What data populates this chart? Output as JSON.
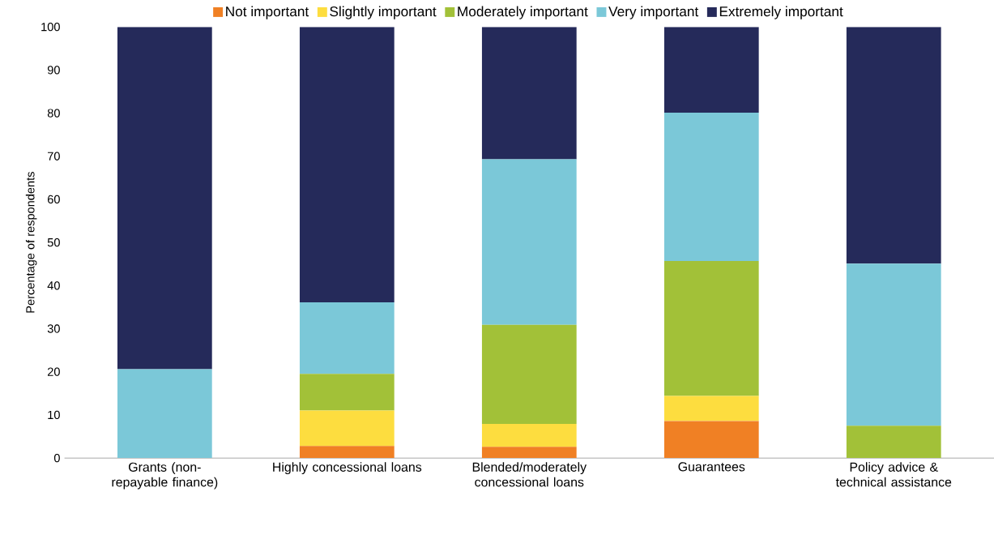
{
  "chart_data": {
    "type": "bar",
    "stacked": true,
    "ylabel": "Percentage of respondents",
    "categories": [
      "Grants (non-repayable finance)",
      "Highly concessional loans",
      "Blended/moderately concessional loans",
      "Guarantees",
      "Policy advice & technical assistance"
    ],
    "series": [
      {
        "name": "Not important",
        "color": "#f08024",
        "values": [
          0,
          2.8,
          2.6,
          8.6,
          0
        ]
      },
      {
        "name": "Slightly important",
        "color": "#fddd3f",
        "values": [
          0,
          8.2,
          5.3,
          5.8,
          0
        ]
      },
      {
        "name": "Moderately important",
        "color": "#a2c138",
        "values": [
          0,
          8.5,
          23.0,
          31.3,
          7.5
        ]
      },
      {
        "name": "Very important",
        "color": "#7bc8d8",
        "values": [
          20.6,
          16.6,
          38.4,
          34.4,
          37.6
        ]
      },
      {
        "name": "Extremely important",
        "color": "#252a5a",
        "values": [
          79.4,
          63.9,
          30.7,
          19.9,
          54.9
        ]
      }
    ],
    "ylim": [
      0,
      100
    ],
    "yticks": [
      0,
      10,
      20,
      30,
      40,
      50,
      60,
      70,
      80,
      90,
      100
    ],
    "legend": "top",
    "grid": false
  }
}
